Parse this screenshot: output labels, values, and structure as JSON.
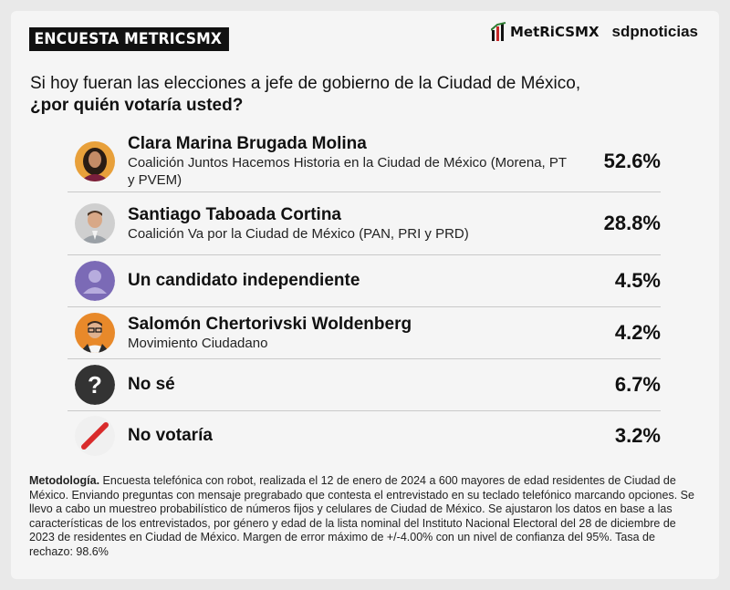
{
  "header": {
    "badge": "ENCUESTA METRICSMX"
  },
  "brand": {
    "metrics": "MetRiCSMX",
    "sdp": "sdpnoticias"
  },
  "question": {
    "line1": "Si hoy fueran las elecciones a jefe de gobierno de la Ciudad de México,",
    "line2": "¿por quién votaría usted?"
  },
  "chart_data": {
    "type": "table",
    "title": "",
    "rows": [
      {
        "name": "Clara Marina Brugada Molina",
        "sub": "Coalición Juntos Hacemos Historia en la Ciudad de México (Morena, PT y PVEM)",
        "value": 52.6,
        "pct": "52.6%",
        "icon": "photo-woman-icon"
      },
      {
        "name": "Santiago Taboada Cortina",
        "sub": "Coalición Va por la Ciudad de México (PAN, PRI y PRD)",
        "value": 28.8,
        "pct": "28.8%",
        "icon": "photo-man-icon"
      },
      {
        "name": "Un candidato independiente",
        "sub": "",
        "value": 4.5,
        "pct": "4.5%",
        "icon": "person-silhouette-icon"
      },
      {
        "name": "Salomón Chertorivski Woldenberg",
        "sub": "Movimiento Ciudadano",
        "value": 4.2,
        "pct": "4.2%",
        "icon": "photo-man-glasses-icon"
      },
      {
        "name": "No sé",
        "sub": "",
        "value": 6.7,
        "pct": "6.7%",
        "icon": "question-mark-icon"
      },
      {
        "name": "No votaría",
        "sub": "",
        "value": 3.2,
        "pct": "3.2%",
        "icon": "slash-icon"
      }
    ]
  },
  "colors": {
    "independent": "#7b6ab6",
    "unknown": "#333333",
    "novote": "#d92b2b"
  },
  "methodology": {
    "label": "Metodología.",
    "text": " Encuesta telefónica con robot, realizada el 12 de enero de 2024 a 600 mayores de edad residentes de Ciudad de México. Enviando preguntas con mensaje pregrabado que contesta el entrevistado en su teclado telefónico marcando opciones. Se llevo a cabo un muestreo probabilístico de números fijos y celulares de Ciudad de México. Se ajustaron los datos en base a las características de los entrevistados, por género y edad de la lista nominal del Instituto Nacional Electoral del 28 de diciembre de 2023 de residentes en Ciudad de México. Margen de error máximo de +/-4.00% con un nivel de confianza del 95%. Tasa de rechazo: 98.6%"
  }
}
